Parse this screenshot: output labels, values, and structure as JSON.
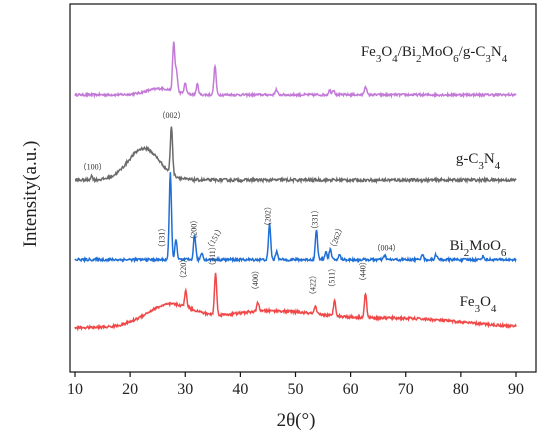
{
  "chart_data": {
    "type": "line",
    "xlabel": "2θ(°)",
    "ylabel": "Intensity(a.u.)",
    "xlim": [
      10,
      90
    ],
    "x_ticks": [
      10,
      20,
      30,
      40,
      50,
      60,
      70,
      80,
      90
    ],
    "y_ticks_labeled": false,
    "grid": false,
    "legend": "none",
    "series": [
      {
        "name": "Fe3O4/Bi2MoO6/g-C3N4",
        "color": "#c27ad6",
        "baseline": 0.1,
        "peaks": [
          [
            27.9,
            0.92
          ],
          [
            28.4,
            0.4
          ],
          [
            30.0,
            0.2
          ],
          [
            32.2,
            0.2
          ],
          [
            35.4,
            0.56
          ],
          [
            46.5,
            0.1
          ],
          [
            56.2,
            0.09
          ],
          [
            56.9,
            0.1
          ],
          [
            62.7,
            0.17
          ]
        ],
        "hump": [
          [
            25.5,
            0.12,
            3.5
          ]
        ],
        "label_text": "Fe3O4/Bi2MoO6/g-C3N4",
        "label_parts": [
          [
            "Fe",
            ""
          ],
          [
            "3",
            "sub"
          ],
          [
            "O",
            ""
          ],
          [
            "4",
            "sub"
          ],
          [
            "/Bi",
            ""
          ],
          [
            "2",
            "sub"
          ],
          [
            "MoO",
            ""
          ],
          [
            "6",
            "sub"
          ],
          [
            "/g-C",
            ""
          ],
          [
            "3",
            "sub"
          ],
          [
            "N",
            ""
          ],
          [
            "4",
            "sub"
          ]
        ],
        "plane_labels": []
      },
      {
        "name": "g-C3N4",
        "color": "#6a6a6a",
        "baseline": 0.06,
        "peaks": [
          [
            13.0,
            0.06
          ],
          [
            27.5,
            0.72
          ]
        ],
        "hump": [
          [
            22.5,
            0.48,
            4.0
          ]
        ],
        "label_text": "g-C3N4",
        "label_parts": [
          [
            "g-C",
            ""
          ],
          [
            "3",
            "sub"
          ],
          [
            "N",
            ""
          ],
          [
            "4",
            "sub"
          ]
        ],
        "plane_labels": [
          {
            "text": "（100）",
            "x": 13.2
          },
          {
            "text": "（002）",
            "x": 27.5
          }
        ]
      },
      {
        "name": "Bi2MoO6",
        "color": "#1f6fd6",
        "baseline": 0.04,
        "peaks": [
          [
            27.3,
            1.5
          ],
          [
            28.3,
            0.35
          ],
          [
            31.7,
            0.43
          ],
          [
            33.0,
            0.12
          ],
          [
            45.3,
            0.62
          ],
          [
            46.6,
            0.15
          ],
          [
            53.8,
            0.52
          ],
          [
            55.5,
            0.14
          ],
          [
            56.3,
            0.18
          ],
          [
            58.0,
            0.08
          ],
          [
            66.2,
            0.07
          ],
          [
            73.0,
            0.1
          ],
          [
            75.5,
            0.09
          ],
          [
            84.0,
            0.06
          ]
        ],
        "hump": [],
        "label_text": "Bi2MoO6",
        "label_parts": [
          [
            "Bi",
            ""
          ],
          [
            "2",
            "sub"
          ],
          [
            "MoO",
            ""
          ],
          [
            "6",
            "sub"
          ]
        ],
        "plane_labels": [
          {
            "text": "（131）",
            "x": 26.2,
            "rotate": -90
          },
          {
            "text": "（200）",
            "x": 32.0,
            "rotate": -90
          },
          {
            "text": "（151）",
            "x": 34.5,
            "rotate": -60
          },
          {
            "text": "（202）",
            "x": 45.5,
            "rotate": -90
          },
          {
            "text": "（331）",
            "x": 54.0,
            "rotate": -90
          },
          {
            "text": "（262）",
            "x": 57.0,
            "rotate": -70
          },
          {
            "text": "（004）",
            "x": 66.5,
            "rotate": 0
          }
        ]
      },
      {
        "name": "Fe3O4",
        "color": "#f04848",
        "baseline": 0.04,
        "peaks": [
          [
            30.1,
            0.28
          ],
          [
            35.5,
            0.72
          ],
          [
            43.2,
            0.16
          ],
          [
            53.6,
            0.12
          ],
          [
            57.1,
            0.28
          ],
          [
            62.7,
            0.42
          ]
        ],
        "hump": [
          [
            27.0,
            0.35,
            6.0
          ],
          [
            45.0,
            0.28,
            14.0
          ],
          [
            70.0,
            0.15,
            15.0
          ]
        ],
        "label_text": "Fe3O4",
        "label_parts": [
          [
            "Fe",
            ""
          ],
          [
            "3",
            "sub"
          ],
          [
            "O",
            ""
          ],
          [
            "4",
            "sub"
          ]
        ],
        "plane_labels": [
          {
            "text": "（220）",
            "x": 30.1,
            "rotate": -90
          },
          {
            "text": "（311）",
            "x": 35.4,
            "rotate": -90
          },
          {
            "text": "（400）",
            "x": 43.2,
            "rotate": -90
          },
          {
            "text": "（422）",
            "x": 53.6,
            "rotate": -90
          },
          {
            "text": "（511）",
            "x": 57.1,
            "rotate": -90
          },
          {
            "text": "（440）",
            "x": 62.7,
            "rotate": -90
          }
        ]
      }
    ]
  }
}
